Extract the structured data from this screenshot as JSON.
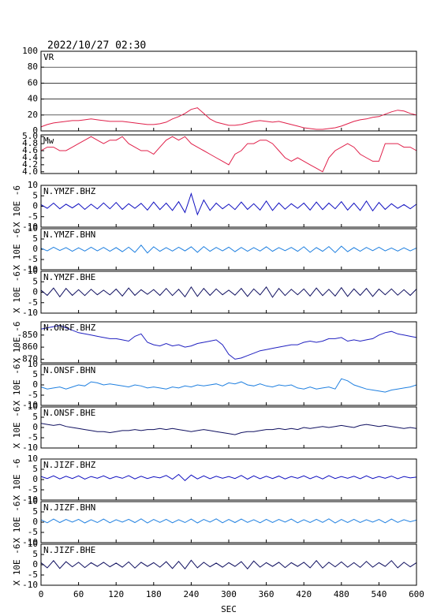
{
  "chart_data": {
    "type": "line",
    "title": "2022/10/27 02:30",
    "x_label": "SEC",
    "x": [
      0,
      10,
      20,
      30,
      40,
      50,
      60,
      70,
      80,
      90,
      100,
      110,
      120,
      130,
      140,
      150,
      160,
      170,
      180,
      190,
      200,
      210,
      220,
      230,
      240,
      250,
      260,
      270,
      280,
      290,
      300,
      310,
      320,
      330,
      340,
      350,
      360,
      370,
      380,
      390,
      400,
      410,
      420,
      430,
      440,
      450,
      460,
      470,
      480,
      490,
      500,
      510,
      520,
      530,
      540,
      550,
      560,
      570,
      580,
      590,
      600
    ],
    "xlim": [
      0,
      600
    ],
    "xticks": [
      0,
      60,
      120,
      180,
      240,
      300,
      360,
      420,
      480,
      540,
      600
    ],
    "panels": [
      {
        "label": "VR",
        "color": "#e0204a",
        "grid": true,
        "ylim": [
          0,
          100
        ],
        "yticks": [
          0,
          20,
          40,
          60,
          80,
          100
        ],
        "values": [
          5,
          8,
          10,
          11,
          12,
          13,
          13,
          14,
          15,
          14,
          13,
          12,
          12,
          12,
          11,
          10,
          9,
          8,
          8,
          9,
          11,
          15,
          18,
          22,
          27,
          29,
          22,
          15,
          11,
          9,
          7,
          7,
          8,
          10,
          12,
          13,
          12,
          11,
          12,
          10,
          8,
          6,
          4,
          3,
          2,
          2,
          3,
          4,
          6,
          9,
          12,
          14,
          15,
          17,
          18,
          21,
          24,
          26,
          25,
          22,
          20
        ]
      },
      {
        "label": "Mw",
        "color": "#e0204a",
        "grid": false,
        "ylim": [
          3.95,
          5.05
        ],
        "yticks": [
          {
            "value": 4,
            "label": "4.0"
          },
          4.2,
          4.4,
          4.6,
          4.8,
          {
            "value": 5,
            "label": "5.0"
          }
        ],
        "values": [
          4.6,
          4.7,
          4.7,
          4.6,
          4.6,
          4.7,
          4.8,
          4.9,
          5.0,
          4.9,
          4.8,
          4.9,
          4.9,
          5.0,
          4.8,
          4.7,
          4.6,
          4.6,
          4.5,
          4.7,
          4.9,
          5.0,
          4.9,
          5.0,
          4.8,
          4.7,
          4.6,
          4.5,
          4.4,
          4.3,
          4.2,
          4.5,
          4.6,
          4.8,
          4.8,
          4.9,
          4.9,
          4.8,
          4.6,
          4.4,
          4.3,
          4.4,
          4.3,
          4.2,
          4.1,
          4.0,
          4.4,
          4.6,
          4.7,
          4.8,
          4.7,
          4.5,
          4.4,
          4.3,
          4.3,
          4.8,
          4.8,
          4.8,
          4.7,
          4.7,
          4.6
        ]
      },
      {
        "label": "N.YMZF.BHZ",
        "ylabel": "X 10E -6",
        "color": "#1010c0",
        "grid": false,
        "ylim": [
          -10,
          10
        ],
        "yticks": [
          -10,
          -5,
          0,
          5,
          10
        ],
        "values": [
          0.8,
          -1,
          1.5,
          -1.2,
          1,
          -0.8,
          1.2,
          -1.5,
          1,
          -1.3,
          1.6,
          -1.2,
          1.8,
          -1.5,
          1.2,
          -1,
          1.4,
          -1.8,
          2,
          -1.6,
          1.5,
          -2,
          2.2,
          -3,
          6,
          -4,
          3,
          -2,
          1.5,
          -1.2,
          1,
          -1.6,
          2,
          -1.5,
          1.2,
          -1.8,
          2.5,
          -2,
          1.6,
          -1.4,
          1.2,
          -1,
          1.5,
          -1.8,
          2,
          -1.6,
          1.5,
          -1.2,
          2.2,
          -1.8,
          1.5,
          -2,
          2.5,
          -2.2,
          1.8,
          -1.5,
          1.2,
          -1,
          0.8,
          -1.2,
          1
        ]
      },
      {
        "label": "N.YMZF.BHN",
        "ylabel": "X 10E -6",
        "color": "#2080e0",
        "grid": false,
        "ylim": [
          -10,
          10
        ],
        "yticks": [
          -10,
          -5,
          0,
          5,
          10
        ],
        "values": [
          0.5,
          -0.8,
          1,
          -0.6,
          0.8,
          -1,
          0.7,
          -0.9,
          1,
          -0.8,
          0.9,
          -1,
          0.8,
          -1.2,
          1,
          -1.5,
          2,
          -1.8,
          1.2,
          -1,
          0.8,
          -0.9,
          1,
          -0.8,
          1.2,
          -1.5,
          1.3,
          -1,
          0.9,
          -0.8,
          1,
          -1.2,
          0.9,
          -1,
          0.8,
          -0.9,
          1.2,
          -1,
          0.8,
          -0.7,
          0.9,
          -1,
          1.2,
          -1.5,
          0.8,
          -1,
          1.3,
          -1.6,
          1.5,
          -1.2,
          0.8,
          -1,
          0.9,
          -0.7,
          1,
          -0.8,
          0.6,
          -0.9,
          0.7,
          -0.8,
          0.6
        ]
      },
      {
        "label": "N.YMZF.BHE",
        "ylabel": "X 10E -6",
        "color": "#101060",
        "grid": false,
        "ylim": [
          -10,
          10
        ],
        "yticks": [
          -10,
          -5,
          0,
          5,
          10
        ],
        "values": [
          1,
          -1.5,
          2,
          -2.2,
          1.8,
          -1.5,
          1.2,
          -1.6,
          1.4,
          -1.2,
          1,
          -1.3,
          1.5,
          -1.8,
          2,
          -1.5,
          1.2,
          -1,
          1.3,
          -1.5,
          1.8,
          -1.6,
          1.4,
          -2.2,
          2.5,
          -2,
          1.8,
          -1.5,
          1.6,
          -1.2,
          1,
          -1.4,
          1.8,
          -2,
          1.6,
          -1.3,
          2.5,
          -2.4,
          1.8,
          -1.6,
          1.4,
          -1.2,
          1.6,
          -1.8,
          2,
          -1.6,
          1.4,
          -1.8,
          2.2,
          -2,
          1.6,
          -1.5,
          1.8,
          -2,
          1.5,
          -1.2,
          1.6,
          -1.4,
          1.2,
          -1.5,
          1.5
        ]
      },
      {
        "label": "N.ONSF.BHZ",
        "ylabel": "X 10E -6",
        "color": "#2020c0",
        "grid": false,
        "ylim": [
          -873,
          -839
        ],
        "yticks": [
          -870,
          -860,
          -850
        ],
        "values": [
          -845,
          -844,
          -843,
          -842,
          -844,
          -846,
          -848,
          -849,
          -850,
          -851,
          -852,
          -853,
          -853,
          -854,
          -855,
          -851,
          -849,
          -856,
          -858,
          -859,
          -857,
          -859,
          -858,
          -860,
          -859,
          -857,
          -856,
          -855,
          -854,
          -858,
          -866,
          -870,
          -869,
          -867,
          -865,
          -863,
          -862,
          -861,
          -860,
          -859,
          -858,
          -858,
          -856,
          -855,
          -856,
          -855,
          -853,
          -853,
          -852,
          -855,
          -854,
          -855,
          -854,
          -853,
          -850,
          -848,
          -847,
          -849,
          -850,
          -851,
          -852
        ]
      },
      {
        "label": "N.ONSF.BHN",
        "ylabel": "X 10E -6",
        "color": "#2080e0",
        "grid": false,
        "ylim": [
          -10,
          10
        ],
        "yticks": [
          -10,
          -5,
          0,
          5,
          10
        ],
        "values": [
          -1,
          -2,
          -1.5,
          -1,
          -2,
          -1,
          0,
          -0.5,
          1.5,
          1,
          0,
          0.5,
          0,
          -0.5,
          -1,
          0,
          -0.5,
          -1.5,
          -1,
          -1.5,
          -2,
          -1,
          -1.5,
          -0.5,
          -1,
          0,
          -0.5,
          0,
          0.5,
          -0.5,
          1,
          0.5,
          1.5,
          0,
          -0.5,
          0.5,
          -0.5,
          -1,
          0,
          -0.5,
          0,
          -1.5,
          -2,
          -1,
          -2,
          -1.5,
          -1,
          -2,
          3,
          2,
          0,
          -1,
          -2,
          -2.5,
          -3,
          -3.5,
          -2.5,
          -2,
          -1.5,
          -1,
          0
        ]
      },
      {
        "label": "N.ONSF.BHE",
        "ylabel": "X 10E -6",
        "color": "#101060",
        "grid": false,
        "ylim": [
          -10,
          10
        ],
        "yticks": [
          -10,
          -5,
          0,
          5,
          10
        ],
        "values": [
          2,
          1.5,
          1,
          1.5,
          0.5,
          0,
          -0.5,
          -1,
          -1.5,
          -2,
          -2,
          -2.5,
          -2,
          -1.5,
          -1.5,
          -1,
          -1.5,
          -1,
          -1,
          -0.5,
          -1,
          -0.5,
          -1,
          -1.5,
          -2,
          -1.5,
          -1,
          -1.5,
          -2,
          -2.5,
          -3,
          -3.5,
          -2.5,
          -2,
          -2,
          -1.5,
          -1,
          -1,
          -0.5,
          -1,
          -0.5,
          -1,
          0,
          -0.5,
          0,
          0.5,
          0,
          0.5,
          1,
          0.5,
          0,
          1,
          1.5,
          1,
          0.5,
          1,
          0.5,
          0,
          -0.5,
          0,
          -0.5
        ]
      },
      {
        "label": "N.JIZF.BHZ",
        "ylabel": "X 10E -6",
        "color": "#1010c0",
        "grid": false,
        "ylim": [
          -10,
          10
        ],
        "yticks": [
          -10,
          -5,
          0,
          5,
          10
        ],
        "values": [
          1.5,
          0.5,
          1.8,
          0.3,
          1.6,
          0.5,
          1.8,
          0.2,
          1.5,
          0.6,
          1.8,
          0.4,
          1.5,
          0.6,
          1.9,
          0.3,
          1.6,
          0.5,
          1.4,
          0.8,
          2,
          0.2,
          2.5,
          -0.5,
          2.2,
          0.3,
          1.8,
          0.4,
          1.6,
          0.6,
          1.5,
          0.5,
          2,
          0.2,
          1.8,
          0.4,
          1.6,
          0.5,
          1.7,
          0.3,
          1.5,
          0.6,
          1.8,
          0.4,
          1.6,
          0.3,
          1.9,
          0.5,
          1.5,
          0.6,
          1.6,
          0.4,
          1.8,
          0.5,
          1.5,
          0.6,
          1.7,
          0.4,
          1.5,
          0.8,
          1.2
        ]
      },
      {
        "label": "N.JIZF.BHN",
        "ylabel": "X 10E -6",
        "color": "#2080e0",
        "grid": false,
        "ylim": [
          -10,
          10
        ],
        "yticks": [
          -10,
          -5,
          0,
          5,
          10
        ],
        "values": [
          1.2,
          -0.3,
          1.5,
          -0.2,
          1.3,
          0,
          1.4,
          -0.4,
          1.2,
          -0.2,
          1.5,
          -0.3,
          1.2,
          0,
          1.4,
          -0.2,
          1.6,
          -0.4,
          1.3,
          -0.1,
          1.4,
          -0.3,
          1.2,
          -0.2,
          1.5,
          -0.4,
          1.3,
          0,
          1.6,
          -0.3,
          1.3,
          -0.2,
          1.5,
          -0.1,
          1.2,
          -0.3,
          1.4,
          -0.2,
          1.3,
          0,
          1.5,
          -0.3,
          1.2,
          -0.2,
          1.4,
          -0.1,
          1.6,
          -0.4,
          1.3,
          -0.2,
          1.4,
          -0.2,
          1.2,
          0,
          1.3,
          -0.3,
          1.5,
          -0.1,
          1.2,
          0.2,
          1
        ]
      },
      {
        "label": "N.JIZF.BHE",
        "ylabel": "X 10E -6",
        "color": "#101060",
        "grid": false,
        "ylim": [
          -10,
          10
        ],
        "yticks": [
          -10,
          -5,
          0,
          5,
          10
        ],
        "values": [
          1,
          -1.5,
          2,
          -1.8,
          1.5,
          -1,
          1.2,
          -1.4,
          1,
          -0.8,
          1.2,
          -1,
          0.8,
          -1.2,
          1.4,
          -1.6,
          1.2,
          -0.8,
          1,
          -1.2,
          1.5,
          -1.8,
          1.6,
          -2,
          2.2,
          -1.5,
          1.2,
          -1,
          0.8,
          -1.2,
          1,
          -0.8,
          1.5,
          -2,
          1.8,
          -1.2,
          1,
          -0.8,
          1.2,
          -1.4,
          1,
          -0.8,
          1.2,
          -1.5,
          2,
          -1.6,
          1.2,
          -1,
          1.4,
          -1.2,
          1,
          -1.3,
          1.6,
          -1.2,
          1,
          -0.8,
          2,
          -1.5,
          1.2,
          -1,
          1
        ]
      }
    ]
  }
}
